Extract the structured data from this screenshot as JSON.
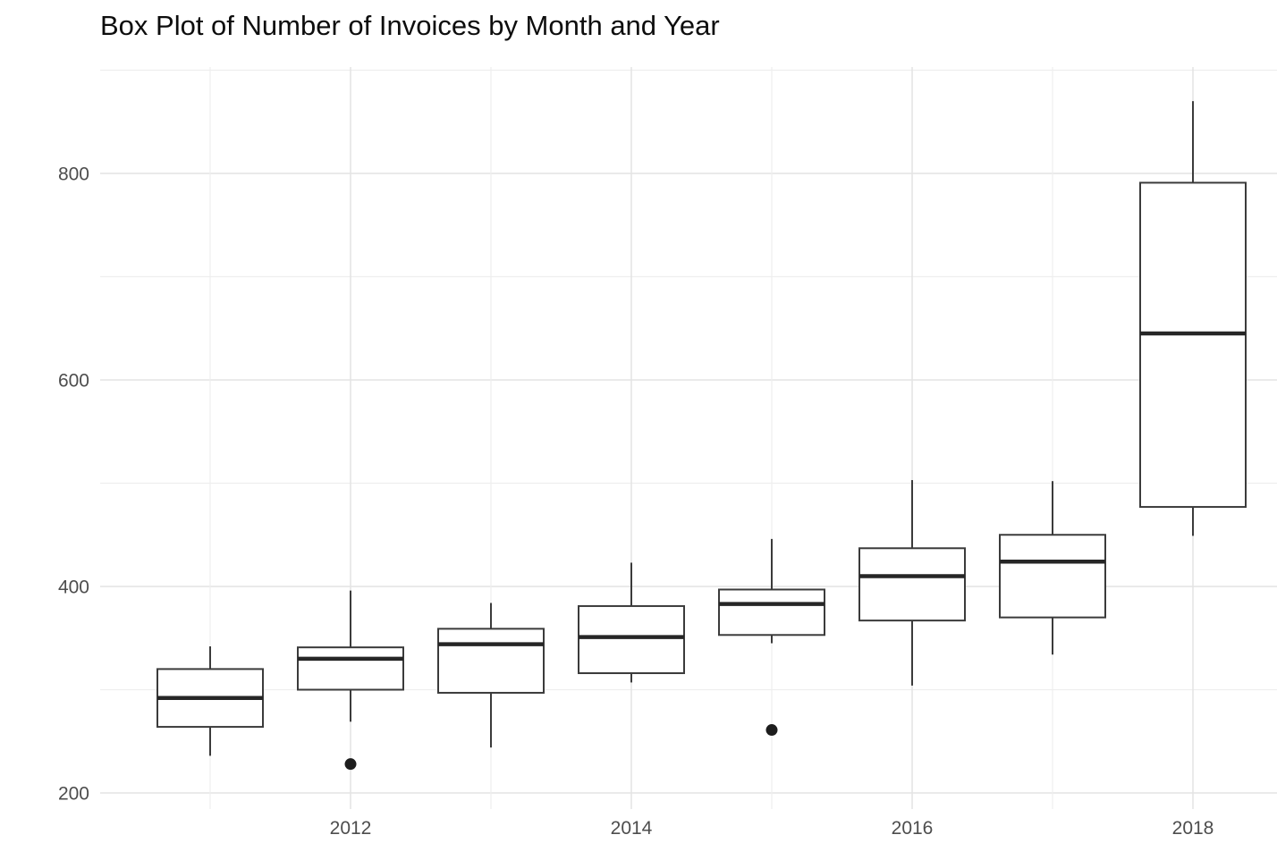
{
  "chart_data": {
    "type": "boxplot",
    "title": "Box Plot of Number of Invoices by Month and Year",
    "xlabel": "",
    "ylabel": "",
    "legend": "none",
    "grid": "on",
    "background": "white",
    "x_axis": {
      "major_ticks": [
        2012,
        2014,
        2016,
        2018
      ],
      "major_tick_labels": [
        "2012",
        "2014",
        "2016",
        "2018"
      ],
      "minor_gridlines": [
        2011,
        2013,
        2015,
        2017
      ],
      "range": [
        2010.2,
        2018.6
      ]
    },
    "y_axis": {
      "major_ticks": [
        200,
        400,
        600,
        800
      ],
      "major_tick_labels": [
        "200",
        "400",
        "600",
        "800"
      ],
      "minor_gridlines": [
        300,
        500,
        700,
        900
      ],
      "range": [
        180,
        905
      ]
    },
    "boxes": [
      {
        "category": "2011",
        "year": 2011,
        "whisker_low": 236,
        "q1": 264,
        "median": 292,
        "q3": 320,
        "whisker_high": 342,
        "outliers": []
      },
      {
        "category": "2012",
        "year": 2012,
        "whisker_low": 269,
        "q1": 300,
        "median": 330,
        "q3": 341,
        "whisker_high": 396,
        "outliers": [
          228
        ]
      },
      {
        "category": "2013",
        "year": 2013,
        "whisker_low": 244,
        "q1": 297,
        "median": 344,
        "q3": 359,
        "whisker_high": 384,
        "outliers": []
      },
      {
        "category": "2014",
        "year": 2014,
        "whisker_low": 307,
        "q1": 316,
        "median": 351,
        "q3": 381,
        "whisker_high": 423,
        "outliers": []
      },
      {
        "category": "2015",
        "year": 2015,
        "whisker_low": 345,
        "q1": 353,
        "median": 383,
        "q3": 397,
        "whisker_high": 446,
        "outliers": [
          261
        ]
      },
      {
        "category": "2016",
        "year": 2016,
        "whisker_low": 304,
        "q1": 367,
        "median": 410,
        "q3": 437,
        "whisker_high": 503,
        "outliers": []
      },
      {
        "category": "2017",
        "year": 2017,
        "whisker_low": 334,
        "q1": 370,
        "median": 424,
        "q3": 450,
        "whisker_high": 502,
        "outliers": []
      },
      {
        "category": "2018",
        "year": 2018,
        "whisker_low": 449,
        "q1": 477,
        "median": 645,
        "q3": 791,
        "whisker_high": 870,
        "outliers": []
      }
    ],
    "colors": {
      "box_stroke": "#3b3b3b",
      "box_fill": "#ffffff",
      "median_line": "#262626",
      "outlier_point": "#1d1d1d",
      "grid_major": "#e4e4e4",
      "grid_minor": "#eeeeee",
      "axis_text": "#4d4d4d",
      "title_text": "#0d0d0d",
      "background": "#ffffff"
    }
  }
}
